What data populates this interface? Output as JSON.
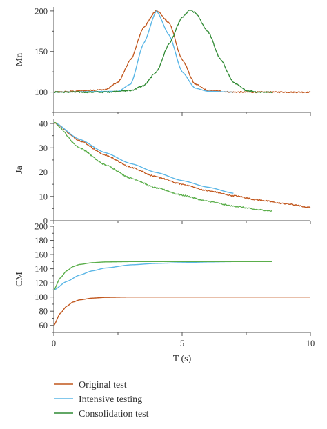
{
  "colors": {
    "original": "#c1561c",
    "intensive": "#5ab6e6",
    "consolidation": "#2f8a33",
    "consolidation_light": "#5aae4a",
    "axis": "#555555"
  },
  "legend": [
    {
      "label": "Original test",
      "color_key": "original"
    },
    {
      "label": "Intensive testing",
      "color_key": "intensive"
    },
    {
      "label": "Consolidation test",
      "color_key": "consolidation"
    }
  ],
  "chart_data": [
    {
      "type": "line",
      "ylabel": "Mn",
      "xlim": [
        0,
        10
      ],
      "ylim": [
        75,
        205
      ],
      "yticks": [
        100,
        150,
        200
      ],
      "grid": false,
      "series": [
        {
          "name": "Original test",
          "color_key": "original",
          "noisy": true,
          "x": [
            0,
            2,
            2.5,
            3,
            3.5,
            4,
            4.5,
            5,
            5.5,
            6,
            7,
            8,
            10
          ],
          "y": [
            100,
            103,
            112,
            140,
            180,
            201,
            185,
            140,
            110,
            102,
            100,
            100,
            100
          ]
        },
        {
          "name": "Intensive testing",
          "color_key": "intensive",
          "noisy": false,
          "x": [
            0,
            2.5,
            3,
            3.5,
            4,
            4.5,
            5,
            5.5,
            6,
            7
          ],
          "y": [
            100,
            101,
            110,
            160,
            200,
            170,
            125,
            105,
            101,
            100
          ]
        },
        {
          "name": "Consolidation test",
          "color_key": "consolidation",
          "noisy": true,
          "x": [
            0,
            2,
            3,
            3.5,
            4,
            4.5,
            5,
            5.3,
            5.5,
            6,
            6.5,
            7,
            7.5,
            8,
            8.5
          ],
          "y": [
            100,
            100,
            102,
            108,
            125,
            160,
            192,
            201,
            198,
            175,
            140,
            112,
            102,
            100,
            100
          ]
        }
      ]
    },
    {
      "type": "line",
      "ylabel": "Ja",
      "xlim": [
        0,
        10
      ],
      "ylim": [
        0,
        42
      ],
      "yticks": [
        0,
        10,
        20,
        30,
        40
      ],
      "grid": false,
      "series": [
        {
          "name": "Original test",
          "color_key": "original",
          "noisy": true,
          "x": [
            0,
            1,
            2,
            3,
            4,
            5,
            6,
            7,
            8,
            9,
            10
          ],
          "y": [
            40.5,
            33,
            27,
            22,
            18,
            15,
            12.3,
            10.3,
            8.5,
            7,
            5.5
          ]
        },
        {
          "name": "Intensive testing",
          "color_key": "intensive",
          "noisy": false,
          "x": [
            0,
            1,
            2,
            3,
            4,
            5,
            6,
            7
          ],
          "y": [
            40.5,
            33.5,
            28,
            23.5,
            19.8,
            16.5,
            13.8,
            11.3
          ]
        },
        {
          "name": "Consolidation test",
          "color_key": "consolidation_light",
          "noisy": true,
          "x": [
            0,
            1,
            2,
            3,
            4,
            5,
            6,
            7,
            8,
            8.5
          ],
          "y": [
            40.5,
            30,
            23,
            17.5,
            13.5,
            10.5,
            8,
            6,
            4.5,
            4
          ]
        }
      ]
    },
    {
      "type": "line",
      "ylabel": "CM",
      "xlabel": "T (s)",
      "xlim": [
        0,
        10
      ],
      "ylim": [
        50,
        200
      ],
      "yticks": [
        60,
        80,
        100,
        120,
        140,
        160,
        180,
        200
      ],
      "xticks": [
        0,
        5,
        10
      ],
      "grid": false,
      "series": [
        {
          "name": "Original test",
          "color_key": "original",
          "noisy": false,
          "x": [
            0,
            0.25,
            0.5,
            0.75,
            1,
            1.5,
            2,
            3,
            4,
            10
          ],
          "y": [
            60,
            77,
            87,
            93,
            96,
            98.5,
            99.5,
            100,
            100,
            100
          ]
        },
        {
          "name": "Intensive testing",
          "color_key": "intensive",
          "noisy": false,
          "x": [
            0,
            0.5,
            1,
            1.5,
            2,
            3,
            4,
            5,
            6,
            7
          ],
          "y": [
            110,
            122,
            131,
            137,
            141,
            145.5,
            147.5,
            148.5,
            149.5,
            150
          ]
        },
        {
          "name": "Consolidation test",
          "color_key": "consolidation_light",
          "noisy": false,
          "x": [
            0,
            0.25,
            0.5,
            0.75,
            1,
            1.5,
            2,
            3,
            8.5
          ],
          "y": [
            110,
            127,
            137,
            143,
            146,
            148.5,
            149.5,
            150,
            150
          ]
        }
      ]
    }
  ]
}
